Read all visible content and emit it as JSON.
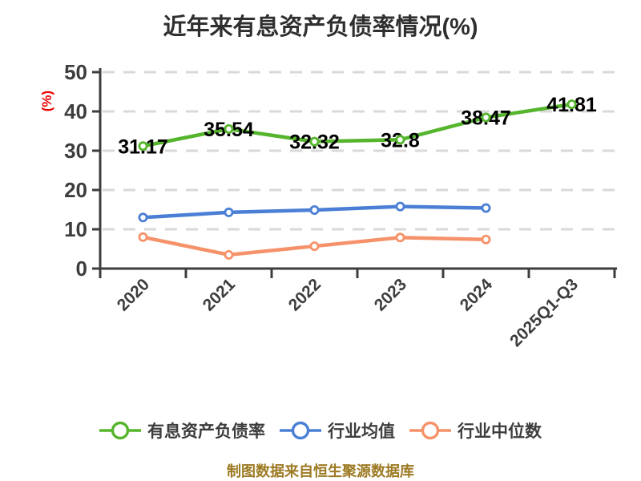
{
  "footer_note": "制图数据来自恒生聚源数据库",
  "colors": {
    "background": "#ffffff",
    "title_text": "#2f2f2f",
    "axis": "#3d3d3d",
    "tick_label": "#3d3d3d",
    "grid": "#d9d9d9",
    "y_unit_label": "#ec0000",
    "value_label": "#000000",
    "footer_text": "#9d7a23",
    "series_green": "#55b52c",
    "series_blue": "#4b7fd5",
    "series_orange": "#f6926a"
  },
  "chart_data": {
    "type": "line",
    "title": "近年来有息资产负债率情况(%)",
    "ylabel": "(%)",
    "categories": [
      "2020",
      "2021",
      "2022",
      "2023",
      "2024",
      "2025Q1-Q3"
    ],
    "series": [
      {
        "name": "有息资产负债率",
        "color": "#55b52c",
        "values": [
          31.17,
          35.54,
          32.32,
          32.8,
          38.47,
          41.81
        ],
        "value_labels_shown": true
      },
      {
        "name": "行业均值",
        "color": "#4b7fd5",
        "values": [
          13.0,
          14.3,
          14.9,
          15.8,
          15.4,
          null
        ],
        "value_labels_shown": false
      },
      {
        "name": "行业中位数",
        "color": "#f6926a",
        "values": [
          8.0,
          3.5,
          5.7,
          7.9,
          7.4,
          null
        ],
        "value_labels_shown": false
      }
    ],
    "ylim": [
      0,
      50
    ],
    "yticks": [
      0,
      10,
      20,
      30,
      40,
      50
    ],
    "grid": {
      "horizontal": true,
      "style": "dashed"
    },
    "legend_position": "bottom",
    "xtick_rotation_deg": 45,
    "marker": "circle-white-fill"
  }
}
